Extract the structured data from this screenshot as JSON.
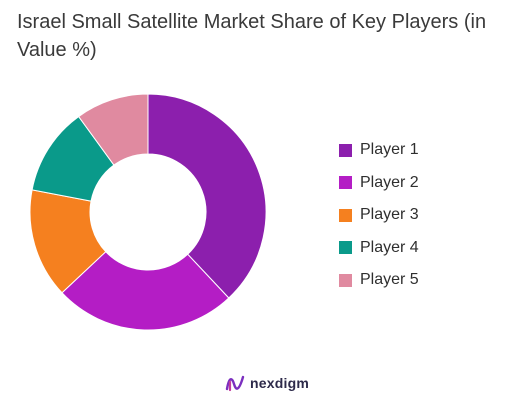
{
  "chart_data": {
    "type": "pie",
    "title": "Israel Small Satellite Market Share of Key Players (in Value %)",
    "categories": [
      "Player 1",
      "Player 2",
      "Player 3",
      "Player 4",
      "Player 5"
    ],
    "values": [
      38,
      25,
      15,
      12,
      10
    ],
    "colors": [
      "#8c1fad",
      "#b41dc5",
      "#f5801f",
      "#0a9a8a",
      "#e08aa0"
    ],
    "donut": true,
    "legend_position": "right"
  },
  "brand": {
    "name": "nexdigm",
    "logo_icon": "nexdigm-logo-icon"
  }
}
